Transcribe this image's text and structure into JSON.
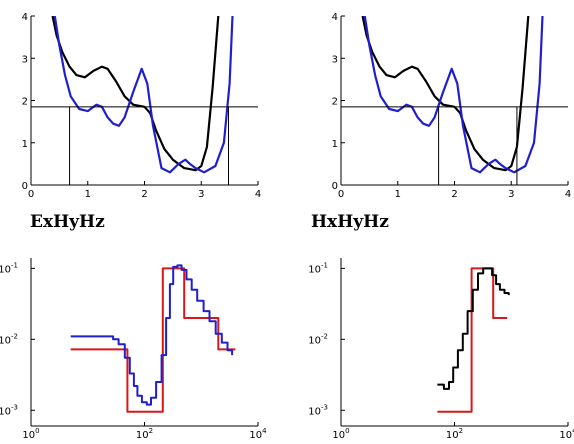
{
  "titles": {
    "left": "ExHyHz",
    "right": "HxHyHz"
  },
  "colors": {
    "black": "#000000",
    "blue": "#1f1fcf",
    "red": "#d81818",
    "axis": "#000000"
  },
  "chart_data": [
    {
      "id": "top-left",
      "type": "line",
      "xlim": [
        0,
        4
      ],
      "ylim": [
        0,
        4
      ],
      "xticks": [
        0,
        1,
        2,
        3,
        4
      ],
      "yticks": [
        0,
        1,
        2,
        3,
        4
      ],
      "hline": 1.85,
      "vlines": [
        0.68,
        3.48
      ],
      "series": [
        {
          "color": "black",
          "points": [
            [
              0.38,
              4.0
            ],
            [
              0.45,
              3.55
            ],
            [
              0.55,
              3.15
            ],
            [
              0.68,
              2.8
            ],
            [
              0.8,
              2.6
            ],
            [
              0.95,
              2.55
            ],
            [
              1.1,
              2.7
            ],
            [
              1.25,
              2.8
            ],
            [
              1.35,
              2.75
            ],
            [
              1.5,
              2.45
            ],
            [
              1.65,
              2.1
            ],
            [
              1.8,
              1.9
            ],
            [
              2.0,
              1.85
            ],
            [
              2.1,
              1.7
            ],
            [
              2.2,
              1.3
            ],
            [
              2.35,
              0.85
            ],
            [
              2.5,
              0.6
            ],
            [
              2.7,
              0.4
            ],
            [
              2.9,
              0.35
            ],
            [
              3.0,
              0.45
            ],
            [
              3.1,
              0.9
            ],
            [
              3.2,
              2.3
            ],
            [
              3.3,
              4.0
            ]
          ]
        },
        {
          "color": "blue",
          "points": [
            [
              0.42,
              4.0
            ],
            [
              0.5,
              3.3
            ],
            [
              0.6,
              2.6
            ],
            [
              0.7,
              2.1
            ],
            [
              0.85,
              1.8
            ],
            [
              1.0,
              1.75
            ],
            [
              1.15,
              1.9
            ],
            [
              1.25,
              1.85
            ],
            [
              1.35,
              1.6
            ],
            [
              1.45,
              1.45
            ],
            [
              1.55,
              1.4
            ],
            [
              1.65,
              1.6
            ],
            [
              1.8,
              2.2
            ],
            [
              1.95,
              2.75
            ],
            [
              2.05,
              2.4
            ],
            [
              2.15,
              1.4
            ],
            [
              2.3,
              0.4
            ],
            [
              2.45,
              0.3
            ],
            [
              2.6,
              0.5
            ],
            [
              2.72,
              0.6
            ],
            [
              2.8,
              0.5
            ],
            [
              2.9,
              0.4
            ],
            [
              3.05,
              0.3
            ],
            [
              3.25,
              0.45
            ],
            [
              3.4,
              1.0
            ],
            [
              3.5,
              2.4
            ],
            [
              3.55,
              4.0
            ]
          ]
        }
      ]
    },
    {
      "id": "top-right",
      "type": "line",
      "xlim": [
        0,
        4
      ],
      "ylim": [
        0,
        4
      ],
      "xticks": [
        0,
        1,
        2,
        3,
        4
      ],
      "yticks": [
        0,
        1,
        2,
        3,
        4
      ],
      "hline": 1.85,
      "vlines": [
        1.72,
        3.1
      ],
      "series": [
        {
          "color": "black",
          "points": [
            [
              0.38,
              4.0
            ],
            [
              0.45,
              3.55
            ],
            [
              0.55,
              3.15
            ],
            [
              0.68,
              2.8
            ],
            [
              0.8,
              2.6
            ],
            [
              0.95,
              2.55
            ],
            [
              1.1,
              2.7
            ],
            [
              1.25,
              2.8
            ],
            [
              1.35,
              2.75
            ],
            [
              1.5,
              2.45
            ],
            [
              1.65,
              2.1
            ],
            [
              1.8,
              1.9
            ],
            [
              2.0,
              1.85
            ],
            [
              2.1,
              1.7
            ],
            [
              2.2,
              1.3
            ],
            [
              2.35,
              0.85
            ],
            [
              2.5,
              0.6
            ],
            [
              2.7,
              0.4
            ],
            [
              2.9,
              0.35
            ],
            [
              3.0,
              0.45
            ],
            [
              3.1,
              0.9
            ],
            [
              3.2,
              2.3
            ],
            [
              3.3,
              4.0
            ]
          ]
        },
        {
          "color": "blue",
          "points": [
            [
              0.42,
              4.0
            ],
            [
              0.5,
              3.3
            ],
            [
              0.6,
              2.6
            ],
            [
              0.7,
              2.1
            ],
            [
              0.85,
              1.8
            ],
            [
              1.0,
              1.75
            ],
            [
              1.15,
              1.9
            ],
            [
              1.25,
              1.85
            ],
            [
              1.35,
              1.6
            ],
            [
              1.45,
              1.45
            ],
            [
              1.55,
              1.4
            ],
            [
              1.65,
              1.6
            ],
            [
              1.8,
              2.2
            ],
            [
              1.95,
              2.75
            ],
            [
              2.05,
              2.4
            ],
            [
              2.15,
              1.4
            ],
            [
              2.3,
              0.4
            ],
            [
              2.45,
              0.3
            ],
            [
              2.6,
              0.5
            ],
            [
              2.72,
              0.6
            ],
            [
              2.8,
              0.5
            ],
            [
              2.9,
              0.4
            ],
            [
              3.05,
              0.3
            ],
            [
              3.25,
              0.45
            ],
            [
              3.4,
              1.0
            ],
            [
              3.5,
              2.4
            ],
            [
              3.55,
              4.0
            ]
          ]
        }
      ]
    },
    {
      "id": "bottom-left",
      "type": "line",
      "xscale": "log",
      "yscale": "log",
      "xlim": [
        1,
        10000
      ],
      "ylim": [
        0.0006,
        0.14
      ],
      "xticks": [
        1,
        100,
        10000
      ],
      "yticks": [
        0.001,
        0.01,
        0.1
      ],
      "xticklabels": [
        [
          "10",
          "0"
        ],
        [
          "10",
          "2"
        ],
        [
          "10",
          "4"
        ]
      ],
      "yticklabels": [
        [
          "10",
          "-3"
        ],
        [
          "10",
          "-2"
        ],
        [
          "10",
          "-1"
        ]
      ],
      "series": [
        {
          "color": "red",
          "step": true,
          "points": [
            [
              5,
              0.0072
            ],
            [
              50,
              0.0072
            ],
            [
              50,
              0.00095
            ],
            [
              210,
              0.00095
            ],
            [
              210,
              0.1
            ],
            [
              500,
              0.1
            ],
            [
              500,
              0.02
            ],
            [
              2000,
              0.02
            ],
            [
              2000,
              0.0072
            ],
            [
              4000,
              0.0072
            ]
          ]
        },
        {
          "color": "blue",
          "step": true,
          "points": [
            [
              5,
              0.011
            ],
            [
              20,
              0.011
            ],
            [
              28,
              0.01
            ],
            [
              35,
              0.0085
            ],
            [
              45,
              0.0055
            ],
            [
              55,
              0.0033
            ],
            [
              65,
              0.0022
            ],
            [
              75,
              0.0016
            ],
            [
              90,
              0.0013
            ],
            [
              110,
              0.0012
            ],
            [
              130,
              0.0015
            ],
            [
              160,
              0.0025
            ],
            [
              200,
              0.006
            ],
            [
              240,
              0.02
            ],
            [
              280,
              0.06
            ],
            [
              320,
              0.105
            ],
            [
              380,
              0.11
            ],
            [
              450,
              0.095
            ],
            [
              550,
              0.07
            ],
            [
              680,
              0.05
            ],
            [
              850,
              0.035
            ],
            [
              1100,
              0.025
            ],
            [
              1400,
              0.018
            ],
            [
              1800,
              0.012
            ],
            [
              2300,
              0.009
            ],
            [
              2900,
              0.007
            ],
            [
              3500,
              0.006
            ]
          ]
        }
      ]
    },
    {
      "id": "bottom-right",
      "type": "line",
      "xscale": "log",
      "yscale": "log",
      "xlim": [
        1,
        10000
      ],
      "ylim": [
        0.0006,
        0.14
      ],
      "xticks": [
        1,
        100,
        10000
      ],
      "yticks": [
        0.001,
        0.01,
        0.1
      ],
      "xticklabels": [
        [
          "10",
          "0"
        ],
        [
          "10",
          "2"
        ],
        [
          "10",
          "4"
        ]
      ],
      "yticklabels": [
        [
          "10",
          "-3"
        ],
        [
          "10",
          "-2"
        ],
        [
          "10",
          "-1"
        ]
      ],
      "series": [
        {
          "color": "red",
          "step": true,
          "points": [
            [
              50,
              0.00095
            ],
            [
              200,
              0.00095
            ],
            [
              200,
              0.1
            ],
            [
              480,
              0.1
            ],
            [
              480,
              0.02
            ],
            [
              850,
              0.02
            ]
          ]
        },
        {
          "color": "black",
          "step": true,
          "points": [
            [
              50,
              0.0023
            ],
            [
              65,
              0.002
            ],
            [
              80,
              0.0025
            ],
            [
              95,
              0.004
            ],
            [
              115,
              0.007
            ],
            [
              140,
              0.012
            ],
            [
              170,
              0.025
            ],
            [
              210,
              0.05
            ],
            [
              260,
              0.085
            ],
            [
              320,
              0.1
            ],
            [
              390,
              0.1
            ],
            [
              460,
              0.08
            ],
            [
              540,
              0.06
            ],
            [
              630,
              0.05
            ],
            [
              760,
              0.045
            ],
            [
              900,
              0.042
            ]
          ]
        }
      ]
    }
  ]
}
